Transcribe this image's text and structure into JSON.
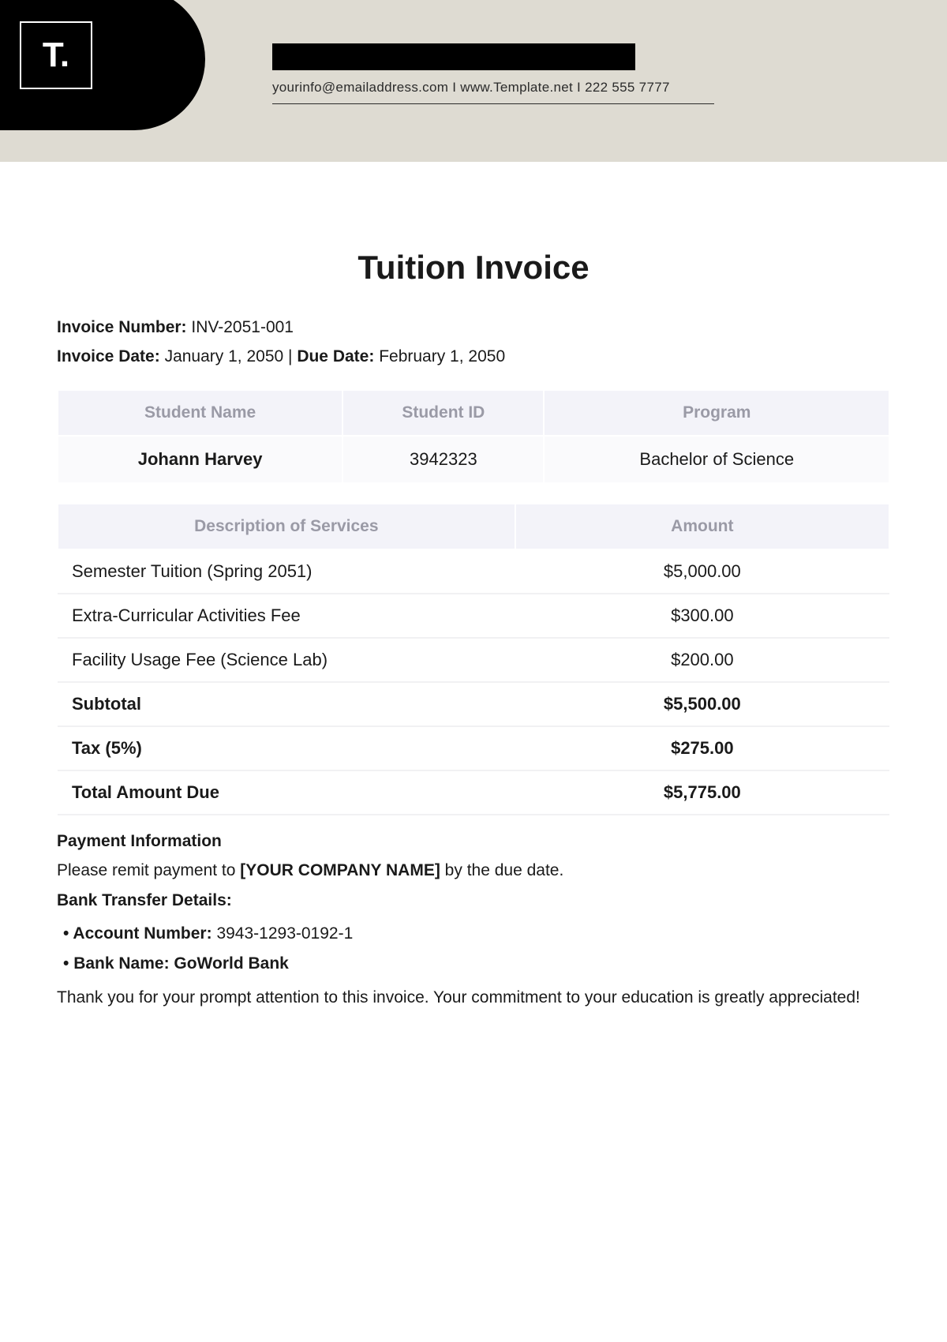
{
  "header": {
    "logo_text": "T.",
    "contact_email": "yourinfo@emailaddress.com",
    "contact_site": "www.Template.net",
    "contact_phone": "222 555 7777",
    "separator": "  I  "
  },
  "doc": {
    "title": "Tuition Invoice",
    "invoice_number_label": "Invoice Number:",
    "invoice_number": "INV-2051-001",
    "invoice_date_label": "Invoice Date:",
    "invoice_date": "January 1, 2050",
    "due_date_label": "Due Date:",
    "due_date": "February 1, 2050"
  },
  "student_table": {
    "columns": [
      "Student Name",
      "Student ID",
      "Program"
    ],
    "row": {
      "name": "Johann Harvey",
      "id": "3942323",
      "program": "Bachelor of Science"
    }
  },
  "services_table": {
    "columns": [
      "Description of Services",
      "Amount"
    ],
    "rows": [
      {
        "desc": "Semester Tuition (Spring 2051)",
        "amount": "$5,000.00",
        "bold": false
      },
      {
        "desc": "Extra-Curricular Activities Fee",
        "amount": "$300.00",
        "bold": false
      },
      {
        "desc": "Facility Usage Fee (Science Lab)",
        "amount": "$200.00",
        "bold": false
      },
      {
        "desc": "Subtotal",
        "amount": "$5,500.00",
        "bold": true
      },
      {
        "desc": "Tax (5%)",
        "amount": "$275.00",
        "bold": true
      },
      {
        "desc": "Total Amount Due",
        "amount": "$5,775.00",
        "bold": true
      }
    ]
  },
  "payment": {
    "heading": "Payment Information",
    "remit_prefix": "Please remit payment to ",
    "remit_company": "[YOUR COMPANY NAME]",
    "remit_suffix": " by the due date.",
    "bank_heading": "Bank Transfer Details:",
    "account_label": "Account Number:",
    "account_value": "3943-1293-0192-1",
    "bank_label": "Bank Name: GoWorld Bank"
  },
  "thanks": "Thank you for your prompt attention to this invoice. Your commitment to your education is greatly appreciated!",
  "colors": {
    "header_band": "#dedbd2",
    "logo_bg": "#000000",
    "table_header_bg": "#f3f3f9",
    "table_header_fg": "#9a9aa6",
    "row_border": "#f1f1f3"
  }
}
